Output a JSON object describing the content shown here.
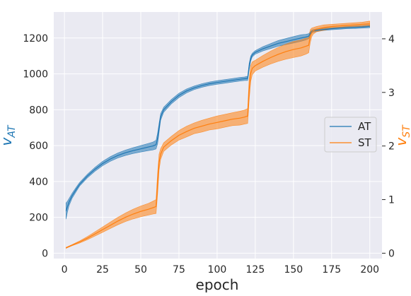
{
  "chart_data": {
    "type": "line",
    "title": "",
    "xlabel": "epoch",
    "ylabel_left": "v_AT",
    "ylabel_right": "v_ST",
    "ylabel_left_display": {
      "base": "v",
      "sub": "AT"
    },
    "ylabel_right_display": {
      "base": "v",
      "sub": "ST"
    },
    "xlim": [
      -7,
      208
    ],
    "ylim_left": [
      -30,
      1345
    ],
    "ylim_right": [
      -0.1,
      4.5
    ],
    "xticks": [
      0,
      25,
      50,
      75,
      100,
      125,
      150,
      175,
      200
    ],
    "yticks_left": [
      0,
      200,
      400,
      600,
      800,
      1000,
      1200
    ],
    "yticks_right": [
      0,
      1,
      2,
      3,
      4
    ],
    "grid": true,
    "legend_position": "center-right",
    "background_color": "#eaeaf2",
    "series": [
      {
        "name": "AT",
        "axis": "left",
        "color": "#1f77b4",
        "x": [
          1,
          2,
          3,
          5,
          8,
          10,
          15,
          20,
          25,
          30,
          35,
          40,
          45,
          50,
          55,
          58,
          60,
          61,
          62,
          63,
          65,
          70,
          75,
          80,
          85,
          90,
          95,
          100,
          105,
          110,
          115,
          118,
          120,
          121,
          122,
          123,
          125,
          130,
          135,
          140,
          145,
          150,
          155,
          158,
          160,
          161,
          162,
          163,
          165,
          170,
          175,
          180,
          185,
          190,
          195,
          200
        ],
        "mean": [
          235,
          260,
          285,
          320,
          360,
          385,
          430,
          468,
          500,
          525,
          545,
          560,
          572,
          582,
          592,
          598,
          605,
          640,
          700,
          760,
          800,
          845,
          880,
          905,
          922,
          935,
          945,
          952,
          958,
          964,
          970,
          973,
          975,
          1040,
          1085,
          1105,
          1120,
          1140,
          1155,
          1170,
          1180,
          1190,
          1200,
          1205,
          1210,
          1225,
          1236,
          1240,
          1243,
          1248,
          1252,
          1255,
          1258,
          1260,
          1262,
          1265
        ],
        "band": [
          45,
          30,
          20,
          14,
          12,
          10,
          10,
          11,
          12,
          13,
          14,
          15,
          16,
          18,
          20,
          22,
          24,
          30,
          25,
          18,
          14,
          12,
          12,
          11,
          10,
          10,
          10,
          10,
          10,
          10,
          10,
          10,
          12,
          18,
          14,
          10,
          10,
          12,
          14,
          16,
          17,
          18,
          18,
          16,
          14,
          10,
          8,
          7,
          7,
          6,
          6,
          6,
          6,
          7,
          7,
          8
        ]
      },
      {
        "name": "ST",
        "axis": "right",
        "color": "#ff7f0e",
        "x": [
          1,
          5,
          10,
          15,
          20,
          25,
          30,
          35,
          40,
          45,
          50,
          55,
          58,
          60,
          61,
          62,
          63,
          65,
          70,
          75,
          80,
          85,
          90,
          95,
          100,
          105,
          110,
          115,
          118,
          120,
          121,
          122,
          123,
          125,
          130,
          135,
          140,
          145,
          150,
          155,
          158,
          160,
          161,
          162,
          163,
          165,
          170,
          175,
          180,
          185,
          190,
          195,
          200
        ],
        "mean": [
          0.1,
          0.15,
          0.21,
          0.28,
          0.36,
          0.44,
          0.52,
          0.6,
          0.67,
          0.73,
          0.78,
          0.82,
          0.85,
          0.87,
          1.3,
          1.7,
          1.85,
          1.98,
          2.1,
          2.2,
          2.27,
          2.33,
          2.37,
          2.41,
          2.44,
          2.47,
          2.5,
          2.52,
          2.54,
          2.56,
          3.05,
          3.35,
          3.45,
          3.5,
          3.58,
          3.65,
          3.71,
          3.76,
          3.8,
          3.83,
          3.86,
          3.88,
          4.05,
          4.12,
          4.15,
          4.18,
          4.21,
          4.23,
          4.24,
          4.25,
          4.26,
          4.27,
          4.28
        ],
        "band": [
          0.01,
          0.01,
          0.02,
          0.03,
          0.04,
          0.05,
          0.06,
          0.07,
          0.08,
          0.09,
          0.1,
          0.11,
          0.12,
          0.13,
          0.2,
          0.15,
          0.1,
          0.08,
          0.08,
          0.09,
          0.1,
          0.1,
          0.11,
          0.11,
          0.12,
          0.12,
          0.12,
          0.13,
          0.13,
          0.14,
          0.2,
          0.15,
          0.12,
          0.1,
          0.11,
          0.12,
          0.13,
          0.14,
          0.15,
          0.15,
          0.15,
          0.14,
          0.12,
          0.08,
          0.06,
          0.05,
          0.05,
          0.04,
          0.04,
          0.04,
          0.04,
          0.04,
          0.05
        ]
      }
    ]
  }
}
